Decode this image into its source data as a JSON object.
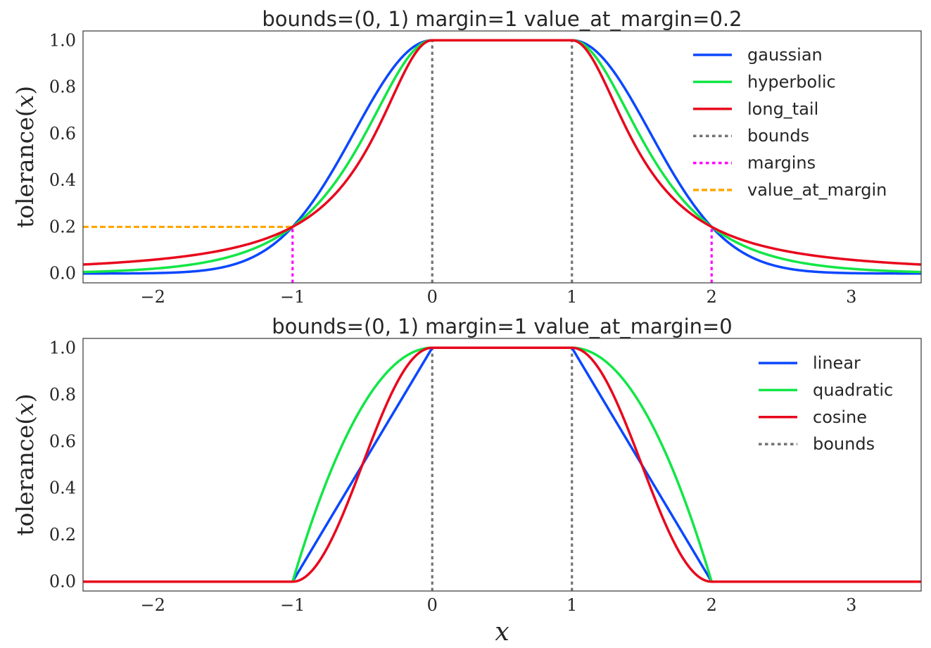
{
  "chart_data": [
    {
      "type": "line",
      "title": "bounds=(0, 1)   margin=1   value_at_margin=0.2",
      "ylabel": "tolerance(𝑥)",
      "xlabel": "",
      "xlim": [
        -2.5,
        3.5
      ],
      "ylim": [
        -0.04,
        1.04
      ],
      "xticks": [
        -2,
        -1,
        0,
        1,
        2,
        3
      ],
      "xtick_labels": [
        "−2",
        "−1",
        "0",
        "1",
        "2",
        "3"
      ],
      "yticks": [
        0.0,
        0.2,
        0.4,
        0.6,
        0.8,
        1.0
      ],
      "ytick_labels": [
        "0.0",
        "0.2",
        "0.4",
        "0.6",
        "0.8",
        "1.0"
      ],
      "grid": false,
      "legend_position": "upper-right",
      "bounds": [
        0,
        1
      ],
      "margin": 1,
      "value_at_margin": 0.2,
      "series": [
        {
          "name": "gaussian",
          "sigmoid": "gaussian",
          "color": "#0b47ff",
          "dash": "solid"
        },
        {
          "name": "hyperbolic",
          "sigmoid": "hyperbolic",
          "color": "#12e646",
          "dash": "solid"
        },
        {
          "name": "long_tail",
          "sigmoid": "long_tail",
          "color": "#e8081d",
          "dash": "solid"
        }
      ],
      "reference_lines": [
        {
          "name": "bounds",
          "color": "#737373",
          "dash": "dotted",
          "segments": [
            {
              "x": [
                0,
                0
              ],
              "y": [
                -0.04,
                1
              ]
            },
            {
              "x": [
                1,
                1
              ],
              "y": [
                -0.04,
                1
              ]
            }
          ]
        },
        {
          "name": "margins",
          "color": "#ff00ff",
          "dash": "dotted",
          "segments": [
            {
              "x": [
                -1,
                -1
              ],
              "y": [
                -0.04,
                0.2
              ]
            },
            {
              "x": [
                2,
                2
              ],
              "y": [
                -0.04,
                0.2
              ]
            }
          ]
        },
        {
          "name": "value_at_margin",
          "color": "#ffa500",
          "dash": "dashed",
          "segments": [
            {
              "x": [
                -2.5,
                -1
              ],
              "y": [
                0.2,
                0.2
              ]
            }
          ]
        }
      ]
    },
    {
      "type": "line",
      "title": "bounds=(0, 1)   margin=1   value_at_margin=0",
      "ylabel": "tolerance(𝑥)",
      "xlabel": "𝑥",
      "xlim": [
        -2.5,
        3.5
      ],
      "ylim": [
        -0.04,
        1.04
      ],
      "xticks": [
        -2,
        -1,
        0,
        1,
        2,
        3
      ],
      "xtick_labels": [
        "−2",
        "−1",
        "0",
        "1",
        "2",
        "3"
      ],
      "yticks": [
        0.0,
        0.2,
        0.4,
        0.6,
        0.8,
        1.0
      ],
      "ytick_labels": [
        "0.0",
        "0.2",
        "0.4",
        "0.6",
        "0.8",
        "1.0"
      ],
      "grid": false,
      "legend_position": "upper-right",
      "bounds": [
        0,
        1
      ],
      "margin": 1,
      "value_at_margin": 0,
      "series": [
        {
          "name": "linear",
          "sigmoid": "linear",
          "color": "#0b47ff",
          "dash": "solid"
        },
        {
          "name": "quadratic",
          "sigmoid": "quadratic",
          "color": "#12e646",
          "dash": "solid"
        },
        {
          "name": "cosine",
          "sigmoid": "cosine",
          "color": "#e8081d",
          "dash": "solid"
        }
      ],
      "reference_lines": [
        {
          "name": "bounds",
          "color": "#737373",
          "dash": "dotted",
          "segments": [
            {
              "x": [
                0,
                0
              ],
              "y": [
                -0.04,
                1
              ]
            },
            {
              "x": [
                1,
                1
              ],
              "y": [
                -0.04,
                1
              ]
            }
          ]
        }
      ]
    }
  ]
}
